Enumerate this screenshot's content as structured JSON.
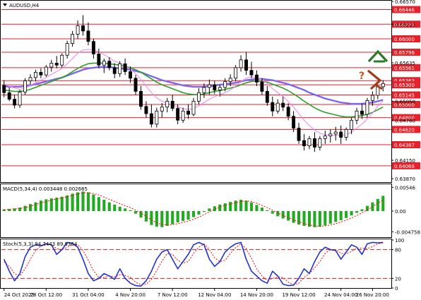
{
  "chart_data": {
    "type": "candlestick",
    "symbol": "AUDUSD,H4",
    "colors": {
      "bull": "#000000",
      "bear": "#000000",
      "level_line": "#e8202a",
      "level_label_bg": "#e8202a",
      "ma_fast": "#ee82ee",
      "ma_mid": "#2aa12a",
      "ma_slow": "#7b68ee",
      "macd_hist": "#22aa22",
      "macd_signal": "#ff0000",
      "stoch_main": "#2233cc",
      "stoch_signal": "#ff0000",
      "arrow_up": "#2a7a2a",
      "arrow_down": "#a33a1a",
      "question_mark": "#cc5522",
      "grid": "#ffffff"
    },
    "price_panel": {
      "ylim": [
        0.63828,
        0.6657
      ],
      "axis_ticks": [
        "0.66570",
        "0.66223",
        "0.65635",
        "0.65050",
        "0.64760",
        "0.64150",
        "0.63870"
      ],
      "axis_tick_values": [
        0.6657,
        0.66223,
        0.65635,
        0.6505,
        0.6476,
        0.6415,
        0.6387
      ],
      "levels": [
        {
          "label": "0.66446",
          "value": 0.66446
        },
        {
          "label": "0.66223",
          "value": 0.66223
        },
        {
          "label": "0.66000",
          "value": 0.66
        },
        {
          "label": "0.65796",
          "value": 0.65796
        },
        {
          "label": "0.65561",
          "value": 0.65561
        },
        {
          "label": "0.65363",
          "value": 0.65363
        },
        {
          "label": "0.65300",
          "value": 0.653
        },
        {
          "label": "0.65145",
          "value": 0.65145
        },
        {
          "label": "0.65000",
          "value": 0.65
        },
        {
          "label": "0.64800",
          "value": 0.648
        },
        {
          "label": "0.64620",
          "value": 0.6462
        },
        {
          "label": "0.64387",
          "value": 0.64387
        },
        {
          "label": "0.64066",
          "value": 0.64066
        }
      ],
      "candles": [
        [
          0.6529,
          0.6537,
          0.6511,
          0.6518
        ],
        [
          0.6518,
          0.6526,
          0.6505,
          0.6508
        ],
        [
          0.6508,
          0.6515,
          0.6494,
          0.6499
        ],
        [
          0.6499,
          0.6522,
          0.6495,
          0.6519
        ],
        [
          0.6519,
          0.654,
          0.6515,
          0.6536
        ],
        [
          0.6536,
          0.6546,
          0.653,
          0.6541
        ],
        [
          0.6541,
          0.6553,
          0.6535,
          0.6549
        ],
        [
          0.6549,
          0.6555,
          0.654,
          0.6545
        ],
        [
          0.6545,
          0.656,
          0.6542,
          0.6557
        ],
        [
          0.6557,
          0.6568,
          0.655,
          0.6563
        ],
        [
          0.6563,
          0.6574,
          0.6555,
          0.656
        ],
        [
          0.656,
          0.6578,
          0.6556,
          0.6575
        ],
        [
          0.6575,
          0.6597,
          0.657,
          0.6593
        ],
        [
          0.6593,
          0.6612,
          0.6588,
          0.6607
        ],
        [
          0.6607,
          0.6628,
          0.66,
          0.662
        ],
        [
          0.662,
          0.6636,
          0.6605,
          0.6612
        ],
        [
          0.6612,
          0.6625,
          0.659,
          0.6596
        ],
        [
          0.6596,
          0.66,
          0.657,
          0.6577
        ],
        [
          0.6577,
          0.6585,
          0.6555,
          0.656
        ],
        [
          0.656,
          0.657,
          0.6548,
          0.6566
        ],
        [
          0.6566,
          0.6572,
          0.6552,
          0.6556
        ],
        [
          0.6556,
          0.6563,
          0.654,
          0.6547
        ],
        [
          0.6547,
          0.6566,
          0.6542,
          0.6562
        ],
        [
          0.6562,
          0.657,
          0.6545,
          0.655
        ],
        [
          0.655,
          0.6558,
          0.6533,
          0.654
        ],
        [
          0.654,
          0.6545,
          0.6515,
          0.652
        ],
        [
          0.652,
          0.6528,
          0.6492,
          0.6497
        ],
        [
          0.6497,
          0.6505,
          0.648,
          0.6486
        ],
        [
          0.6486,
          0.65,
          0.6465,
          0.647
        ],
        [
          0.647,
          0.6495,
          0.6465,
          0.649
        ],
        [
          0.649,
          0.6502,
          0.648,
          0.6496
        ],
        [
          0.6496,
          0.651,
          0.6488,
          0.6505
        ],
        [
          0.6505,
          0.6515,
          0.649,
          0.6494
        ],
        [
          0.6494,
          0.65,
          0.647,
          0.6476
        ],
        [
          0.6476,
          0.6495,
          0.6472,
          0.649
        ],
        [
          0.649,
          0.65,
          0.6478,
          0.6485
        ],
        [
          0.6485,
          0.651,
          0.6482,
          0.6505
        ],
        [
          0.6505,
          0.6525,
          0.65,
          0.6518
        ],
        [
          0.6518,
          0.6532,
          0.651,
          0.6526
        ],
        [
          0.6526,
          0.6538,
          0.6515,
          0.653
        ],
        [
          0.653,
          0.6536,
          0.6516,
          0.6522
        ],
        [
          0.6522,
          0.653,
          0.6512,
          0.6526
        ],
        [
          0.6526,
          0.654,
          0.652,
          0.6535
        ],
        [
          0.6535,
          0.6546,
          0.6528,
          0.654
        ],
        [
          0.654,
          0.656,
          0.6535,
          0.6556
        ],
        [
          0.6556,
          0.6575,
          0.655,
          0.6568
        ],
        [
          0.6568,
          0.658,
          0.6545,
          0.6552
        ],
        [
          0.6552,
          0.6565,
          0.654,
          0.6545
        ],
        [
          0.6545,
          0.6552,
          0.6528,
          0.6534
        ],
        [
          0.6534,
          0.654,
          0.6515,
          0.652
        ],
        [
          0.652,
          0.6528,
          0.6498,
          0.6503
        ],
        [
          0.6503,
          0.6512,
          0.6482,
          0.649
        ],
        [
          0.649,
          0.6508,
          0.6486,
          0.6502
        ],
        [
          0.6502,
          0.6512,
          0.649,
          0.6496
        ],
        [
          0.6496,
          0.6502,
          0.6476,
          0.6482
        ],
        [
          0.6482,
          0.649,
          0.6458,
          0.6464
        ],
        [
          0.6464,
          0.6472,
          0.644,
          0.6445
        ],
        [
          0.6445,
          0.6455,
          0.643,
          0.6437
        ],
        [
          0.6437,
          0.6452,
          0.6432,
          0.6448
        ],
        [
          0.6448,
          0.6458,
          0.6428,
          0.6435
        ],
        [
          0.6435,
          0.6452,
          0.643,
          0.6448
        ],
        [
          0.6448,
          0.646,
          0.644,
          0.6452
        ],
        [
          0.6452,
          0.6462,
          0.6442,
          0.6455
        ],
        [
          0.6455,
          0.6466,
          0.6445,
          0.6458
        ],
        [
          0.6458,
          0.6468,
          0.644,
          0.645
        ],
        [
          0.645,
          0.6465,
          0.6445,
          0.6462
        ],
        [
          0.6462,
          0.648,
          0.6455,
          0.6476
        ],
        [
          0.6476,
          0.6495,
          0.647,
          0.649
        ],
        [
          0.649,
          0.6502,
          0.6478,
          0.6485
        ],
        [
          0.6485,
          0.651,
          0.648,
          0.6506
        ],
        [
          0.6506,
          0.652,
          0.6498,
          0.6514
        ],
        [
          0.6514,
          0.653,
          0.6508,
          0.6527
        ],
        [
          0.6527,
          0.6537,
          0.652,
          0.6532
        ]
      ],
      "ma_fast": [
        0.653,
        0.6528,
        0.6525,
        0.6523,
        0.6525,
        0.6529,
        0.6533,
        0.6537,
        0.6541,
        0.6546,
        0.655,
        0.6555,
        0.6562,
        0.657,
        0.6578,
        0.6583,
        0.6584,
        0.6583,
        0.658,
        0.6576,
        0.6571,
        0.6566,
        0.6563,
        0.6559,
        0.6554,
        0.6547,
        0.6538,
        0.6528,
        0.6518,
        0.651,
        0.6505,
        0.6502,
        0.6499,
        0.6496,
        0.6494,
        0.6492,
        0.6494,
        0.6498,
        0.6503,
        0.6508,
        0.6512,
        0.6515,
        0.6518,
        0.6522,
        0.6528,
        0.6535,
        0.654,
        0.6542,
        0.6541,
        0.6538,
        0.6532,
        0.6524,
        0.6518,
        0.6512,
        0.6505,
        0.6496,
        0.6486,
        0.6476,
        0.6468,
        0.6461,
        0.6456,
        0.6454,
        0.6453,
        0.6453,
        0.6453,
        0.6454,
        0.6458,
        0.6464,
        0.647,
        0.6478,
        0.6487,
        0.6497,
        0.6506
      ],
      "ma_mid": [
        0.6522,
        0.6521,
        0.652,
        0.652,
        0.6521,
        0.6523,
        0.6526,
        0.6529,
        0.6532,
        0.6535,
        0.6538,
        0.6541,
        0.6545,
        0.655,
        0.6555,
        0.6559,
        0.6562,
        0.6563,
        0.6563,
        0.6563,
        0.6562,
        0.6561,
        0.656,
        0.6558,
        0.6556,
        0.6553,
        0.6549,
        0.6544,
        0.6539,
        0.6534,
        0.653,
        0.6527,
        0.6524,
        0.6521,
        0.6518,
        0.6516,
        0.6515,
        0.6515,
        0.6516,
        0.6518,
        0.652,
        0.6521,
        0.6523,
        0.6525,
        0.6527,
        0.653,
        0.6533,
        0.6535,
        0.6536,
        0.6535,
        0.6534,
        0.6531,
        0.6528,
        0.6525,
        0.6521,
        0.6516,
        0.6511,
        0.6505,
        0.65,
        0.6495,
        0.6491,
        0.6488,
        0.6486,
        0.6484,
        0.6482,
        0.6481,
        0.6481,
        0.6482,
        0.6483,
        0.6485,
        0.6488,
        0.6492,
        0.6496
      ],
      "ma_slow": [
        0.6528,
        0.6527,
        0.6527,
        0.6527,
        0.6528,
        0.6529,
        0.6531,
        0.6533,
        0.6535,
        0.6537,
        0.6539,
        0.6541,
        0.6544,
        0.6547,
        0.655,
        0.6553,
        0.6555,
        0.6556,
        0.6557,
        0.6557,
        0.6557,
        0.6556,
        0.6555,
        0.6554,
        0.6553,
        0.6551,
        0.6549,
        0.6546,
        0.6543,
        0.654,
        0.6537,
        0.6535,
        0.6533,
        0.6531,
        0.6529,
        0.6528,
        0.6527,
        0.6527,
        0.6527,
        0.6528,
        0.6529,
        0.653,
        0.6531,
        0.6532,
        0.6533,
        0.6535,
        0.6537,
        0.6538,
        0.6539,
        0.6539,
        0.6538,
        0.6537,
        0.6535,
        0.6533,
        0.6531,
        0.6528,
        0.6525,
        0.6522,
        0.6518,
        0.6515,
        0.6512,
        0.6509,
        0.6507,
        0.6505,
        0.6503,
        0.6502,
        0.6501,
        0.6501,
        0.6501,
        0.6502,
        0.6503,
        0.6505,
        0.6507
      ]
    },
    "macd_panel": {
      "label": "MACD(5,34,4) 0.003448 0.002685",
      "ylim": [
        -0.006,
        0.006
      ],
      "axis_ticks": [
        "0.00546",
        "0.00",
        "-0.004758"
      ],
      "axis_tick_values": [
        0.00546,
        0.0,
        -0.004758
      ],
      "hist": [
        0.0004,
        0.0005,
        0.0006,
        0.0008,
        0.0012,
        0.0016,
        0.002,
        0.0024,
        0.0027,
        0.0029,
        0.0031,
        0.0033,
        0.0036,
        0.004,
        0.0043,
        0.0045,
        0.0043,
        0.0038,
        0.0032,
        0.0026,
        0.002,
        0.0015,
        0.001,
        0.0006,
        0.0002,
        -0.0006,
        -0.0015,
        -0.0024,
        -0.0032,
        -0.0036,
        -0.0037,
        -0.0034,
        -0.003,
        -0.0026,
        -0.0023,
        -0.002,
        -0.0014,
        -0.0008,
        -0.0002,
        0.0006,
        0.0011,
        0.0015,
        0.0018,
        0.0021,
        0.0024,
        0.0026,
        0.0024,
        0.002,
        0.0014,
        0.0008,
        0.0002,
        -0.0006,
        -0.0012,
        -0.0017,
        -0.0022,
        -0.0027,
        -0.0031,
        -0.0034,
        -0.0036,
        -0.0037,
        -0.0036,
        -0.0033,
        -0.0029,
        -0.0025,
        -0.0021,
        -0.0016,
        -0.001,
        -0.0004,
        0.0004,
        0.0012,
        0.002,
        0.0028,
        0.0035
      ],
      "signal": [
        0.0003,
        0.0004,
        0.0005,
        0.0006,
        0.0008,
        0.0011,
        0.0015,
        0.0019,
        0.0022,
        0.0025,
        0.0028,
        0.003,
        0.0033,
        0.0036,
        0.0039,
        0.0042,
        0.0042,
        0.004,
        0.0037,
        0.0032,
        0.0027,
        0.0022,
        0.0017,
        0.0012,
        0.0008,
        0.0002,
        -0.0005,
        -0.0012,
        -0.002,
        -0.0027,
        -0.0031,
        -0.0032,
        -0.0031,
        -0.0029,
        -0.0026,
        -0.0023,
        -0.0019,
        -0.0014,
        -0.0008,
        -0.0002,
        0.0004,
        0.0009,
        0.0013,
        0.0016,
        0.0019,
        0.0022,
        0.0023,
        0.0022,
        0.0018,
        0.0013,
        0.0008,
        0.0002,
        -0.0004,
        -0.001,
        -0.0015,
        -0.002,
        -0.0025,
        -0.0029,
        -0.0032,
        -0.0034,
        -0.0035,
        -0.0034,
        -0.0032,
        -0.0029,
        -0.0025,
        -0.0021,
        -0.0016,
        -0.001,
        -0.0004,
        0.0003,
        0.001,
        0.0018,
        0.0025
      ]
    },
    "stoch_panel": {
      "label": "Stoch(5,3,3) 94.7443 89.9364",
      "ylim": [
        0,
        100
      ],
      "axis_ticks": [
        "100",
        "80",
        "20",
        "0"
      ],
      "axis_tick_values": [
        100,
        80,
        20,
        0
      ],
      "levels": [
        80,
        20
      ],
      "main": [
        60,
        35,
        15,
        30,
        65,
        85,
        90,
        88,
        92,
        90,
        70,
        80,
        95,
        93,
        85,
        60,
        30,
        15,
        20,
        30,
        25,
        18,
        40,
        20,
        10,
        5,
        4,
        15,
        35,
        60,
        75,
        80,
        60,
        40,
        55,
        70,
        90,
        95,
        90,
        60,
        45,
        55,
        75,
        85,
        92,
        95,
        60,
        35,
        25,
        15,
        10,
        35,
        25,
        8,
        5,
        6,
        20,
        40,
        30,
        55,
        75,
        85,
        80,
        78,
        60,
        75,
        90,
        85,
        70,
        92,
        95,
        94,
        95
      ],
      "signal": [
        55,
        45,
        30,
        25,
        40,
        60,
        78,
        87,
        90,
        90,
        82,
        80,
        85,
        90,
        90,
        78,
        58,
        36,
        22,
        22,
        25,
        23,
        28,
        26,
        22,
        12,
        7,
        8,
        18,
        36,
        56,
        72,
        70,
        58,
        52,
        55,
        72,
        85,
        92,
        80,
        63,
        55,
        58,
        72,
        84,
        92,
        82,
        62,
        40,
        25,
        16,
        20,
        23,
        22,
        12,
        7,
        10,
        22,
        30,
        42,
        55,
        72,
        80,
        80,
        72,
        71,
        76,
        83,
        83,
        82,
        86,
        92,
        94
      ]
    },
    "x_tick_labels": [
      "24 Oct 2025",
      "28 Oct 12:00",
      "31 Oct 04:00",
      "4 Nov 20:00",
      "7 Nov 12:00",
      "12 Nov 04:00",
      "14 Nov 20:00",
      "19 Nov 12:00",
      "24 Nov 04:00",
      "26 Nov 20:00"
    ],
    "x_tick_candle_index": [
      0,
      8,
      16,
      24,
      32,
      40,
      48,
      56,
      64,
      70
    ],
    "annotations": {
      "question_mark": "?",
      "arrow_up": "up",
      "arrow_down": "down"
    }
  }
}
